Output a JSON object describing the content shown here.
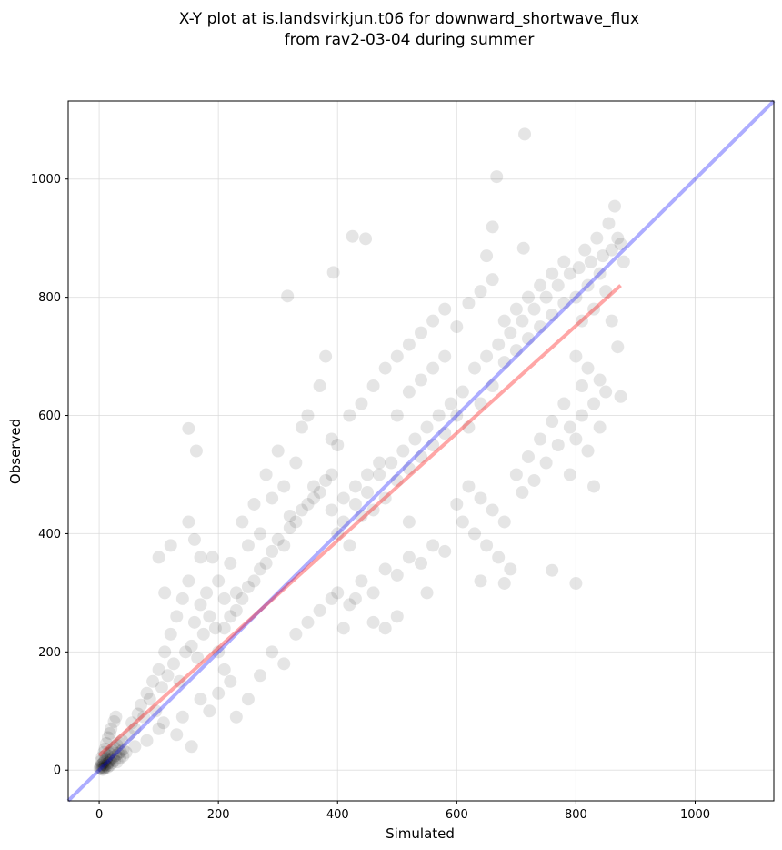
{
  "chart_data": {
    "type": "scatter",
    "title": "X-Y plot at is.landsvirkjun.t06 for downward_shortwave_flux",
    "subtitle": "from rav2-03-04 during summer",
    "xlabel": "Simulated",
    "ylabel": "Observed",
    "xlim": [
      -52,
      1132
    ],
    "ylim": [
      -52,
      1132
    ],
    "xticks": [
      "0",
      "200",
      "400",
      "600",
      "800",
      "1000"
    ],
    "yticks": [
      "0",
      "200",
      "400",
      "600",
      "800",
      "1000"
    ],
    "grid": true,
    "legend": "none",
    "point_color": "#000000",
    "point_opacity": 0.1,
    "series": [
      {
        "points": [
          [
            1,
            3
          ],
          [
            2,
            5
          ],
          [
            3,
            8
          ],
          [
            4,
            2
          ],
          [
            5,
            10
          ],
          [
            6,
            6
          ],
          [
            7,
            12
          ],
          [
            8,
            4
          ],
          [
            9,
            15
          ],
          [
            10,
            9
          ],
          [
            11,
            18
          ],
          [
            12,
            7
          ],
          [
            13,
            20
          ],
          [
            14,
            11
          ],
          [
            15,
            24
          ],
          [
            16,
            13
          ],
          [
            17,
            28
          ],
          [
            18,
            16
          ],
          [
            19,
            30
          ],
          [
            20,
            19
          ],
          [
            22,
            34
          ],
          [
            24,
            22
          ],
          [
            26,
            38
          ],
          [
            28,
            25
          ],
          [
            30,
            42
          ],
          [
            32,
            28
          ],
          [
            34,
            46
          ],
          [
            36,
            31
          ],
          [
            38,
            50
          ],
          [
            40,
            35
          ],
          [
            3,
            15
          ],
          [
            5,
            22
          ],
          [
            8,
            30
          ],
          [
            10,
            36
          ],
          [
            12,
            45
          ],
          [
            15,
            55
          ],
          [
            18,
            62
          ],
          [
            20,
            70
          ],
          [
            25,
            82
          ],
          [
            28,
            90
          ],
          [
            6,
            1
          ],
          [
            9,
            3
          ],
          [
            14,
            5
          ],
          [
            18,
            8
          ],
          [
            22,
            12
          ],
          [
            26,
            16
          ],
          [
            30,
            14
          ],
          [
            35,
            20
          ],
          [
            40,
            24
          ],
          [
            45,
            30
          ],
          [
            50,
            60
          ],
          [
            55,
            80
          ],
          [
            60,
            70
          ],
          [
            65,
            95
          ],
          [
            70,
            110
          ],
          [
            75,
            90
          ],
          [
            80,
            130
          ],
          [
            85,
            120
          ],
          [
            90,
            150
          ],
          [
            95,
            100
          ],
          [
            100,
            170
          ],
          [
            105,
            140
          ],
          [
            110,
            200
          ],
          [
            115,
            160
          ],
          [
            120,
            230
          ],
          [
            125,
            180
          ],
          [
            130,
            260
          ],
          [
            135,
            150
          ],
          [
            140,
            290
          ],
          [
            145,
            200
          ],
          [
            150,
            320
          ],
          [
            155,
            210
          ],
          [
            160,
            250
          ],
          [
            165,
            190
          ],
          [
            170,
            280
          ],
          [
            175,
            230
          ],
          [
            180,
            300
          ],
          [
            185,
            260
          ],
          [
            190,
            360
          ],
          [
            195,
            240
          ],
          [
            100,
            360
          ],
          [
            110,
            300
          ],
          [
            120,
            380
          ],
          [
            150,
            420
          ],
          [
            160,
            390
          ],
          [
            170,
            360
          ],
          [
            150,
            578
          ],
          [
            163,
            540
          ],
          [
            108,
            80
          ],
          [
            130,
            60
          ],
          [
            60,
            40
          ],
          [
            80,
            50
          ],
          [
            100,
            70
          ],
          [
            140,
            90
          ],
          [
            155,
            40
          ],
          [
            170,
            120
          ],
          [
            185,
            100
          ],
          [
            200,
            130
          ],
          [
            210,
            170
          ],
          [
            220,
            150
          ],
          [
            200,
            320
          ],
          [
            210,
            290
          ],
          [
            220,
            350
          ],
          [
            230,
            300
          ],
          [
            240,
            420
          ],
          [
            250,
            380
          ],
          [
            260,
            450
          ],
          [
            270,
            400
          ],
          [
            280,
            500
          ],
          [
            290,
            460
          ],
          [
            300,
            540
          ],
          [
            310,
            480
          ],
          [
            320,
            430
          ],
          [
            330,
            520
          ],
          [
            340,
            580
          ],
          [
            350,
            600
          ],
          [
            360,
            480
          ],
          [
            370,
            650
          ],
          [
            380,
            700
          ],
          [
            390,
            560
          ],
          [
            200,
            200
          ],
          [
            210,
            240
          ],
          [
            220,
            260
          ],
          [
            230,
            270
          ],
          [
            240,
            290
          ],
          [
            250,
            310
          ],
          [
            260,
            320
          ],
          [
            270,
            340
          ],
          [
            280,
            350
          ],
          [
            290,
            370
          ],
          [
            300,
            390
          ],
          [
            310,
            380
          ],
          [
            320,
            410
          ],
          [
            330,
            420
          ],
          [
            340,
            440
          ],
          [
            350,
            450
          ],
          [
            360,
            460
          ],
          [
            370,
            470
          ],
          [
            380,
            490
          ],
          [
            390,
            500
          ],
          [
            230,
            90
          ],
          [
            250,
            120
          ],
          [
            270,
            160
          ],
          [
            290,
            200
          ],
          [
            310,
            180
          ],
          [
            330,
            230
          ],
          [
            350,
            250
          ],
          [
            370,
            270
          ],
          [
            390,
            290
          ],
          [
            410,
            240
          ],
          [
            400,
            400
          ],
          [
            410,
            420
          ],
          [
            420,
            380
          ],
          [
            430,
            450
          ],
          [
            440,
            430
          ],
          [
            450,
            470
          ],
          [
            460,
            440
          ],
          [
            470,
            500
          ],
          [
            480,
            460
          ],
          [
            490,
            520
          ],
          [
            500,
            490
          ],
          [
            510,
            540
          ],
          [
            520,
            510
          ],
          [
            530,
            560
          ],
          [
            540,
            530
          ],
          [
            550,
            580
          ],
          [
            560,
            550
          ],
          [
            570,
            600
          ],
          [
            580,
            570
          ],
          [
            590,
            620
          ],
          [
            400,
            300
          ],
          [
            420,
            280
          ],
          [
            440,
            320
          ],
          [
            460,
            300
          ],
          [
            480,
            340
          ],
          [
            500,
            330
          ],
          [
            520,
            360
          ],
          [
            540,
            350
          ],
          [
            560,
            380
          ],
          [
            580,
            370
          ],
          [
            400,
            550
          ],
          [
            420,
            600
          ],
          [
            440,
            620
          ],
          [
            460,
            650
          ],
          [
            480,
            680
          ],
          [
            500,
            700
          ],
          [
            520,
            720
          ],
          [
            540,
            740
          ],
          [
            560,
            760
          ],
          [
            580,
            780
          ],
          [
            316,
            802
          ],
          [
            425,
            903
          ],
          [
            447,
            899
          ],
          [
            393,
            842
          ],
          [
            430,
            290
          ],
          [
            460,
            250
          ],
          [
            480,
            240
          ],
          [
            500,
            260
          ],
          [
            520,
            420
          ],
          [
            550,
            300
          ],
          [
            600,
            600
          ],
          [
            610,
            640
          ],
          [
            620,
            580
          ],
          [
            630,
            680
          ],
          [
            640,
            620
          ],
          [
            650,
            700
          ],
          [
            660,
            650
          ],
          [
            670,
            720
          ],
          [
            680,
            690
          ],
          [
            690,
            740
          ],
          [
            700,
            710
          ],
          [
            710,
            760
          ],
          [
            720,
            730
          ],
          [
            730,
            780
          ],
          [
            740,
            750
          ],
          [
            750,
            800
          ],
          [
            760,
            770
          ],
          [
            770,
            820
          ],
          [
            780,
            790
          ],
          [
            790,
            840
          ],
          [
            600,
            450
          ],
          [
            610,
            420
          ],
          [
            620,
            480
          ],
          [
            630,
            400
          ],
          [
            640,
            460
          ],
          [
            650,
            380
          ],
          [
            660,
            440
          ],
          [
            670,
            360
          ],
          [
            680,
            420
          ],
          [
            690,
            340
          ],
          [
            700,
            500
          ],
          [
            710,
            470
          ],
          [
            720,
            530
          ],
          [
            730,
            490
          ],
          [
            740,
            560
          ],
          [
            750,
            520
          ],
          [
            760,
            590
          ],
          [
            770,
            550
          ],
          [
            780,
            620
          ],
          [
            790,
            580
          ],
          [
            660,
            919
          ],
          [
            667,
            1004
          ],
          [
            714,
            1076
          ],
          [
            712,
            883
          ],
          [
            640,
            320
          ],
          [
            680,
            316
          ],
          [
            760,
            338
          ],
          [
            800,
            316
          ],
          [
            830,
            480
          ],
          [
            650,
            870
          ],
          [
            800,
            800
          ],
          [
            805,
            850
          ],
          [
            810,
            760
          ],
          [
            815,
            880
          ],
          [
            820,
            820
          ],
          [
            825,
            860
          ],
          [
            830,
            780
          ],
          [
            835,
            900
          ],
          [
            840,
            840
          ],
          [
            845,
            870
          ],
          [
            850,
            810
          ],
          [
            855,
            925
          ],
          [
            860,
            880
          ],
          [
            865,
            954
          ],
          [
            870,
            900
          ],
          [
            875,
            890
          ],
          [
            880,
            860
          ],
          [
            800,
            700
          ],
          [
            810,
            650
          ],
          [
            820,
            680
          ],
          [
            830,
            620
          ],
          [
            840,
            660
          ],
          [
            850,
            640
          ],
          [
            860,
            760
          ],
          [
            870,
            716
          ],
          [
            875,
            632
          ],
          [
            790,
            500
          ],
          [
            800,
            560
          ],
          [
            810,
            600
          ],
          [
            820,
            540
          ],
          [
            840,
            580
          ],
          [
            600,
            750
          ],
          [
            620,
            790
          ],
          [
            640,
            810
          ],
          [
            660,
            830
          ],
          [
            680,
            760
          ],
          [
            700,
            780
          ],
          [
            720,
            800
          ],
          [
            740,
            820
          ],
          [
            760,
            840
          ],
          [
            780,
            860
          ],
          [
            500,
            600
          ],
          [
            520,
            640
          ],
          [
            540,
            660
          ],
          [
            560,
            680
          ],
          [
            580,
            700
          ],
          [
            450,
            500
          ],
          [
            470,
            520
          ],
          [
            430,
            480
          ],
          [
            410,
            460
          ],
          [
            390,
            440
          ]
        ]
      }
    ],
    "reference_line": {
      "name": "1:1",
      "color": "#0000ff",
      "opacity": 0.32,
      "x": [
        -52,
        1132
      ],
      "y": [
        -52,
        1132
      ]
    },
    "fit_line": {
      "name": "fit",
      "color": "#ff0000",
      "opacity": 0.35,
      "x": [
        0,
        875
      ],
      "y": [
        25,
        820
      ]
    }
  }
}
